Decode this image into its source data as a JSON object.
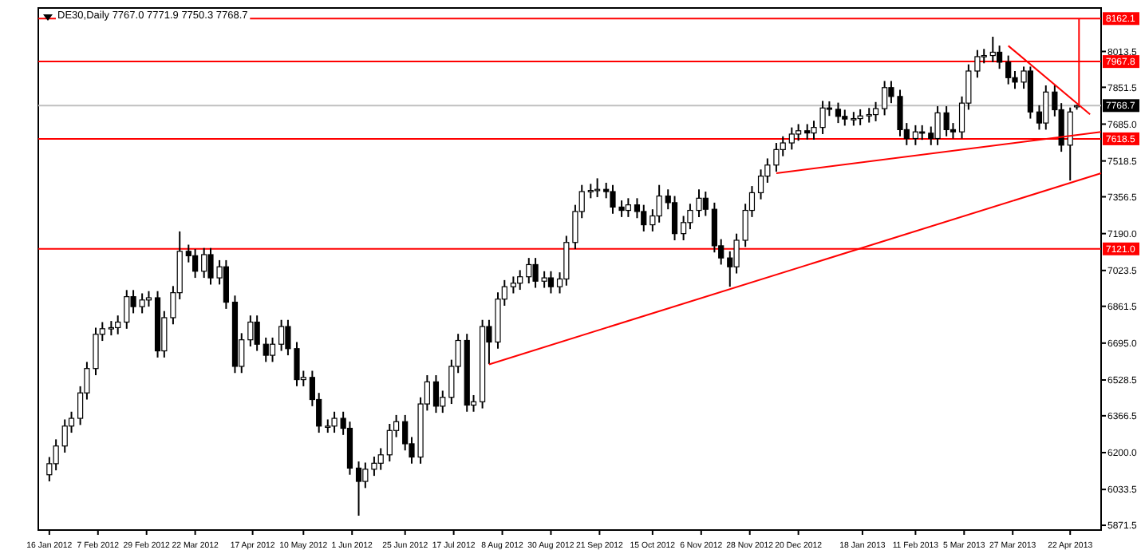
{
  "chart_data": {
    "type": "candlestick",
    "title": "DE30,Daily  7767.0 7771.9 7750.3 7768.7",
    "xlim": [
      "2012-01-11",
      "2013-05-06"
    ],
    "xticks": [
      {
        "value": "2012-01-16",
        "label": "16 Jan 2012"
      },
      {
        "value": "2012-02-07",
        "label": "7 Feb 2012"
      },
      {
        "value": "2012-02-29",
        "label": "29 Feb 2012"
      },
      {
        "value": "2012-03-22",
        "label": "22 Mar 2012"
      },
      {
        "value": "2012-04-17",
        "label": "17 Apr 2012"
      },
      {
        "value": "2012-05-10",
        "label": "10 May 2012"
      },
      {
        "value": "2012-06-01",
        "label": "1 Jun 2012"
      },
      {
        "value": "2012-06-25",
        "label": "25 Jun 2012"
      },
      {
        "value": "2012-07-17",
        "label": "17 Jul 2012"
      },
      {
        "value": "2012-08-08",
        "label": "8 Aug 2012"
      },
      {
        "value": "2012-08-30",
        "label": "30 Aug 2012"
      },
      {
        "value": "2012-09-21",
        "label": "21 Sep 2012"
      },
      {
        "value": "2012-10-15",
        "label": "15 Oct 2012"
      },
      {
        "value": "2012-11-06",
        "label": "6 Nov 2012"
      },
      {
        "value": "2012-11-28",
        "label": "28 Nov 2012"
      },
      {
        "value": "2012-12-20",
        "label": "20 Dec 2012"
      },
      {
        "value": "2013-01-18",
        "label": "18 Jan 2013"
      },
      {
        "value": "2013-02-11",
        "label": "11 Feb 2013"
      },
      {
        "value": "2013-03-05",
        "label": "5 Mar 2013"
      },
      {
        "value": "2013-03-27",
        "label": "27 Mar 2013"
      },
      {
        "value": "2013-04-22",
        "label": "22 Apr 2013"
      }
    ],
    "ylim": [
      5850,
      8210
    ],
    "yticks": [
      {
        "value": 8013.5,
        "label": "8013.5"
      },
      {
        "value": 7851.5,
        "label": "7851.5"
      },
      {
        "value": 7685,
        "label": "7685.0"
      },
      {
        "value": 7518.5,
        "label": "7518.5"
      },
      {
        "value": 7356.5,
        "label": "7356.5"
      },
      {
        "value": 7190,
        "label": "7190.0"
      },
      {
        "value": 7023.5,
        "label": "7023.5"
      },
      {
        "value": 6861.5,
        "label": "6861.5"
      },
      {
        "value": 6695,
        "label": "6695.0"
      },
      {
        "value": 6528.5,
        "label": "6528.5"
      },
      {
        "value": 6366.5,
        "label": "6366.5"
      },
      {
        "value": 6200,
        "label": "6200.0"
      },
      {
        "value": 6033.5,
        "label": "6033.5"
      },
      {
        "value": 5871.5,
        "label": "5871.5"
      }
    ],
    "x": [
      "2012-01-16",
      "2012-01-19",
      "2012-01-23",
      "2012-01-26",
      "2012-01-30",
      "2012-02-02",
      "2012-02-06",
      "2012-02-09",
      "2012-02-13",
      "2012-02-16",
      "2012-02-20",
      "2012-02-23",
      "2012-02-27",
      "2012-03-01",
      "2012-03-05",
      "2012-03-08",
      "2012-03-12",
      "2012-03-15",
      "2012-03-19",
      "2012-03-22",
      "2012-03-26",
      "2012-03-29",
      "2012-04-02",
      "2012-04-05",
      "2012-04-09",
      "2012-04-12",
      "2012-04-16",
      "2012-04-19",
      "2012-04-23",
      "2012-04-26",
      "2012-04-30",
      "2012-05-03",
      "2012-05-07",
      "2012-05-10",
      "2012-05-14",
      "2012-05-17",
      "2012-05-21",
      "2012-05-24",
      "2012-05-28",
      "2012-05-31",
      "2012-06-04",
      "2012-06-07",
      "2012-06-11",
      "2012-06-14",
      "2012-06-18",
      "2012-06-21",
      "2012-06-25",
      "2012-06-28",
      "2012-07-02",
      "2012-07-05",
      "2012-07-09",
      "2012-07-12",
      "2012-07-16",
      "2012-07-19",
      "2012-07-23",
      "2012-07-26",
      "2012-07-30",
      "2012-08-02",
      "2012-08-06",
      "2012-08-09",
      "2012-08-13",
      "2012-08-16",
      "2012-08-20",
      "2012-08-23",
      "2012-08-27",
      "2012-08-30",
      "2012-09-03",
      "2012-09-06",
      "2012-09-10",
      "2012-09-13",
      "2012-09-17",
      "2012-09-20",
      "2012-09-24",
      "2012-09-27",
      "2012-10-01",
      "2012-10-04",
      "2012-10-08",
      "2012-10-11",
      "2012-10-15",
      "2012-10-18",
      "2012-10-22",
      "2012-10-25",
      "2012-10-29",
      "2012-11-01",
      "2012-11-05",
      "2012-11-08",
      "2012-11-12",
      "2012-11-15",
      "2012-11-19",
      "2012-11-22",
      "2012-11-26",
      "2012-11-29",
      "2012-12-03",
      "2012-12-06",
      "2012-12-10",
      "2012-12-13",
      "2012-12-17",
      "2012-12-20",
      "2012-12-24",
      "2012-12-27",
      "2012-12-31",
      "2013-01-03",
      "2013-01-07",
      "2013-01-10",
      "2013-01-14",
      "2013-01-17",
      "2013-01-21",
      "2013-01-24",
      "2013-01-28",
      "2013-01-31",
      "2013-02-04",
      "2013-02-07",
      "2013-02-11",
      "2013-02-14",
      "2013-02-18",
      "2013-02-21",
      "2013-02-25",
      "2013-02-28",
      "2013-03-04",
      "2013-03-07",
      "2013-03-11",
      "2013-03-14",
      "2013-03-18",
      "2013-03-21",
      "2013-03-25",
      "2013-03-28",
      "2013-04-01",
      "2013-04-04",
      "2013-04-08",
      "2013-04-11",
      "2013-04-15",
      "2013-04-18",
      "2013-04-22",
      "2013-04-25"
    ],
    "ohlc": [
      [
        6100,
        6180,
        6070,
        6150
      ],
      [
        6150,
        6260,
        6120,
        6230
      ],
      [
        6230,
        6350,
        6200,
        6320
      ],
      [
        6320,
        6385,
        6290,
        6355
      ],
      [
        6355,
        6500,
        6325,
        6470
      ],
      [
        6470,
        6610,
        6440,
        6580
      ],
      [
        6580,
        6765,
        6550,
        6735
      ],
      [
        6735,
        6790,
        6705,
        6760
      ],
      [
        6760,
        6795,
        6730,
        6765
      ],
      [
        6765,
        6820,
        6735,
        6790
      ],
      [
        6790,
        6935,
        6760,
        6905
      ],
      [
        6905,
        6935,
        6830,
        6860
      ],
      [
        6860,
        6920,
        6830,
        6890
      ],
      [
        6890,
        6930,
        6860,
        6900
      ],
      [
        6900,
        6930,
        6630,
        6660
      ],
      [
        6660,
        6840,
        6630,
        6810
      ],
      [
        6810,
        6953,
        6780,
        6923
      ],
      [
        6923,
        7200,
        6893,
        7110
      ],
      [
        7110,
        7140,
        7060,
        7090
      ],
      [
        7090,
        7120,
        6990,
        7020
      ],
      [
        7020,
        7125,
        6990,
        7095
      ],
      [
        7095,
        7125,
        6960,
        6990
      ],
      [
        6990,
        7070,
        6960,
        7040
      ],
      [
        7040,
        7070,
        6850,
        6880
      ],
      [
        6880,
        6910,
        6560,
        6590
      ],
      [
        6590,
        6740,
        6560,
        6710
      ],
      [
        6710,
        6820,
        6680,
        6790
      ],
      [
        6790,
        6820,
        6660,
        6690
      ],
      [
        6690,
        6720,
        6610,
        6640
      ],
      [
        6640,
        6720,
        6610,
        6690
      ],
      [
        6690,
        6800,
        6660,
        6770
      ],
      [
        6770,
        6800,
        6640,
        6670
      ],
      [
        6670,
        6700,
        6500,
        6530
      ],
      [
        6530,
        6570,
        6500,
        6540
      ],
      [
        6540,
        6570,
        6410,
        6440
      ],
      [
        6440,
        6470,
        6290,
        6320
      ],
      [
        6320,
        6350,
        6290,
        6320
      ],
      [
        6320,
        6385,
        6290,
        6355
      ],
      [
        6355,
        6385,
        6280,
        6310
      ],
      [
        6310,
        6340,
        6100,
        6130
      ],
      [
        6130,
        6160,
        5915,
        6070
      ],
      [
        6070,
        6155,
        6040,
        6125
      ],
      [
        6125,
        6182,
        6095,
        6152
      ],
      [
        6152,
        6220,
        6122,
        6190
      ],
      [
        6190,
        6330,
        6160,
        6300
      ],
      [
        6300,
        6370,
        6270,
        6340
      ],
      [
        6340,
        6370,
        6210,
        6240
      ],
      [
        6240,
        6270,
        6150,
        6180
      ],
      [
        6180,
        6450,
        6150,
        6420
      ],
      [
        6420,
        6550,
        6390,
        6520
      ],
      [
        6520,
        6550,
        6380,
        6410
      ],
      [
        6410,
        6480,
        6380,
        6450
      ],
      [
        6450,
        6620,
        6420,
        6590
      ],
      [
        6590,
        6737,
        6560,
        6707
      ],
      [
        6707,
        6737,
        6385,
        6415
      ],
      [
        6415,
        6460,
        6385,
        6430
      ],
      [
        6430,
        6800,
        6400,
        6770
      ],
      [
        6770,
        6800,
        6600,
        6700
      ],
      [
        6700,
        6924,
        6670,
        6894
      ],
      [
        6894,
        6980,
        6864,
        6950
      ],
      [
        6950,
        6996,
        6920,
        6966
      ],
      [
        6966,
        7025,
        6936,
        6995
      ],
      [
        6995,
        7080,
        6965,
        7050
      ],
      [
        7050,
        7080,
        6945,
        6975
      ],
      [
        6975,
        7020,
        6945,
        6990
      ],
      [
        6990,
        7020,
        6920,
        6950
      ],
      [
        6950,
        7015,
        6920,
        6985
      ],
      [
        6985,
        7180,
        6955,
        7150
      ],
      [
        7150,
        7320,
        7120,
        7290
      ],
      [
        7290,
        7410,
        7260,
        7380
      ],
      [
        7380,
        7415,
        7350,
        7385
      ],
      [
        7385,
        7440,
        7355,
        7390
      ],
      [
        7390,
        7420,
        7350,
        7380
      ],
      [
        7380,
        7410,
        7280,
        7310
      ],
      [
        7310,
        7340,
        7265,
        7295
      ],
      [
        7295,
        7350,
        7265,
        7320
      ],
      [
        7320,
        7350,
        7260,
        7290
      ],
      [
        7290,
        7320,
        7200,
        7230
      ],
      [
        7230,
        7300,
        7200,
        7270
      ],
      [
        7270,
        7410,
        7240,
        7360
      ],
      [
        7360,
        7390,
        7300,
        7330
      ],
      [
        7330,
        7360,
        7160,
        7190
      ],
      [
        7190,
        7270,
        7160,
        7240
      ],
      [
        7240,
        7325,
        7210,
        7295
      ],
      [
        7295,
        7390,
        7265,
        7350
      ],
      [
        7350,
        7380,
        7270,
        7300
      ],
      [
        7300,
        7330,
        7105,
        7135
      ],
      [
        7135,
        7165,
        7050,
        7080
      ],
      [
        7080,
        7110,
        6950,
        7040
      ],
      [
        7040,
        7190,
        7010,
        7160
      ],
      [
        7160,
        7325,
        7130,
        7295
      ],
      [
        7295,
        7405,
        7265,
        7375
      ],
      [
        7375,
        7480,
        7345,
        7450
      ],
      [
        7450,
        7530,
        7420,
        7500
      ],
      [
        7500,
        7600,
        7470,
        7570
      ],
      [
        7570,
        7630,
        7540,
        7600
      ],
      [
        7600,
        7670,
        7570,
        7640
      ],
      [
        7640,
        7685,
        7610,
        7655
      ],
      [
        7655,
        7685,
        7615,
        7645
      ],
      [
        7645,
        7700,
        7615,
        7670
      ],
      [
        7670,
        7790,
        7640,
        7758
      ],
      [
        7758,
        7788,
        7722,
        7752
      ],
      [
        7752,
        7782,
        7690,
        7720
      ],
      [
        7720,
        7750,
        7678,
        7708
      ],
      [
        7708,
        7740,
        7678,
        7710
      ],
      [
        7710,
        7752,
        7680,
        7722
      ],
      [
        7722,
        7758,
        7692,
        7728
      ],
      [
        7728,
        7785,
        7698,
        7755
      ],
      [
        7755,
        7880,
        7725,
        7850
      ],
      [
        7850,
        7880,
        7780,
        7810
      ],
      [
        7810,
        7840,
        7630,
        7660
      ],
      [
        7660,
        7690,
        7590,
        7620
      ],
      [
        7620,
        7680,
        7590,
        7650
      ],
      [
        7650,
        7680,
        7614,
        7644
      ],
      [
        7644,
        7674,
        7590,
        7620
      ],
      [
        7620,
        7766,
        7590,
        7736
      ],
      [
        7736,
        7766,
        7630,
        7660
      ],
      [
        7660,
        7690,
        7620,
        7650
      ],
      [
        7650,
        7810,
        7620,
        7780
      ],
      [
        7780,
        7955,
        7750,
        7925
      ],
      [
        7925,
        8020,
        7895,
        7990
      ],
      [
        7990,
        8025,
        7960,
        7995
      ],
      [
        7995,
        8080,
        7965,
        8010
      ],
      [
        8010,
        8040,
        7935,
        7965
      ],
      [
        7965,
        7995,
        7865,
        7895
      ],
      [
        7895,
        7925,
        7845,
        7875
      ],
      [
        7875,
        7945,
        7845,
        7925
      ],
      [
        7925,
        7945,
        7710,
        7740
      ],
      [
        7740,
        7770,
        7660,
        7690
      ],
      [
        7690,
        7860,
        7660,
        7830
      ],
      [
        7830,
        7860,
        7720,
        7750
      ],
      [
        7750,
        7780,
        7560,
        7590
      ],
      [
        7590,
        7760,
        7430,
        7740
      ],
      [
        7767.0,
        7771.9,
        7750.3,
        7768.7
      ]
    ],
    "series": [
      {
        "type": "line",
        "color": "#ff0000",
        "x": [
          "2012-08-02",
          "2013-05-06"
        ],
        "values": [
          6599,
          7463
        ]
      },
      {
        "type": "line",
        "color": "#ff0000",
        "x": [
          "2012-12-10",
          "2013-05-06"
        ],
        "values": [
          7463,
          7650
        ]
      },
      {
        "type": "line",
        "color": "#ff0000",
        "x": [
          "2013-03-25",
          "2013-05-01"
        ],
        "values": [
          8039,
          7729
        ]
      },
      {
        "type": "line",
        "color": "#ff0000",
        "x": [
          "2013-04-26",
          "2013-04-26"
        ],
        "values": [
          8162.1,
          7768.7
        ]
      }
    ],
    "ref_lines": [
      {
        "axis": "y",
        "value": 8162.1,
        "label": "8162.1",
        "color": "#ff0000"
      },
      {
        "axis": "y",
        "value": 7967.8,
        "label": "7967.8",
        "color": "#ff0000"
      },
      {
        "axis": "y",
        "value": 7768.7,
        "label": "7768.7",
        "color": "#c0c0c0"
      },
      {
        "axis": "y",
        "value": 7618.5,
        "label": "7618.5",
        "color": "#ff0000"
      },
      {
        "axis": "y",
        "value": 7121.0,
        "label": "7121.0",
        "color": "#ff0000"
      }
    ]
  }
}
